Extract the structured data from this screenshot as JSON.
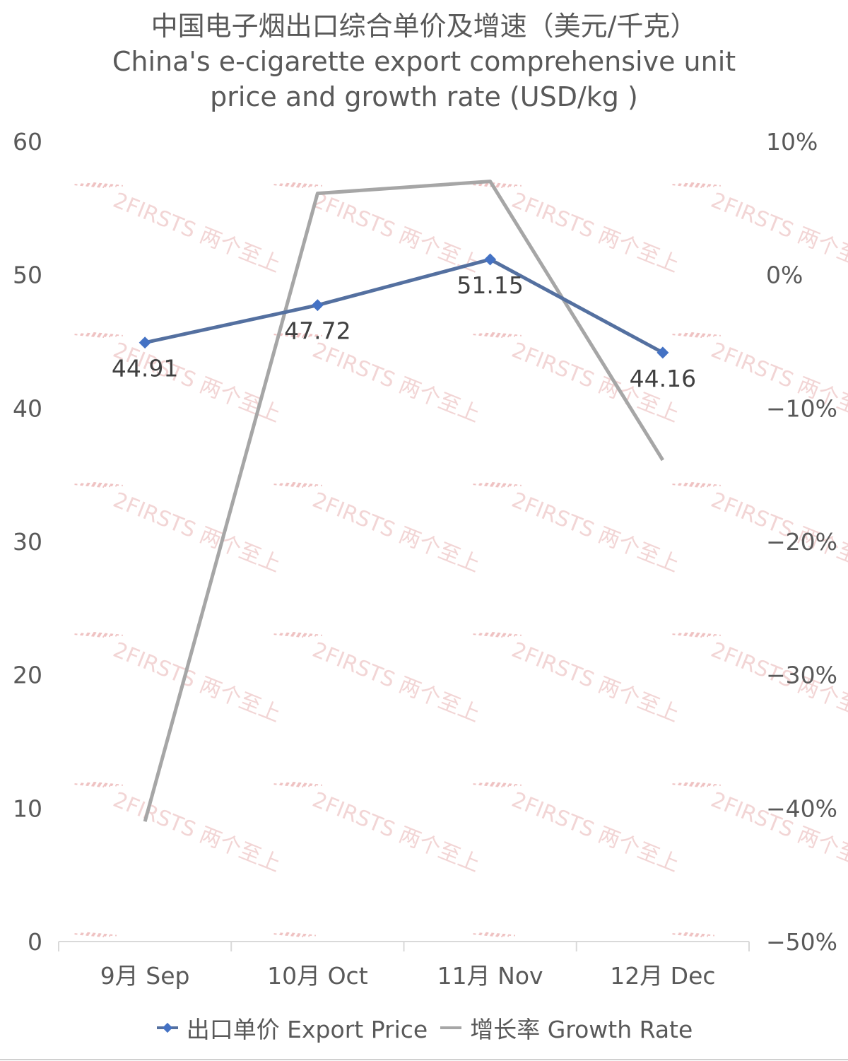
{
  "title_cn": "中国电子烟出口综合单价及增速（美元/千克）",
  "title_en_line1": "China's e-cigarette export comprehensive unit",
  "title_en_line2": "price and growth rate (USD/kg )",
  "watermark_text": "2FIRSTS 两个至上",
  "colors": {
    "price": "#4472C4",
    "price_line": "#5470a0",
    "growth": "#a6a6a6",
    "axis": "#d9d9d9",
    "text": "#595959"
  },
  "legend": {
    "price_label": "出口单价 Export Price",
    "growth_label": "增长率 Growth Rate"
  },
  "chart_data": {
    "type": "line",
    "categories": [
      "9月 Sep",
      "10月 Oct",
      "11月 Nov",
      "12月 Dec"
    ],
    "series": [
      {
        "name": "出口单价 Export Price",
        "axis": "left",
        "values": [
          44.91,
          47.72,
          51.15,
          44.16
        ],
        "labels": [
          "44.91",
          "47.72",
          "51.15",
          "44.16"
        ]
      },
      {
        "name": "增长率 Growth Rate",
        "axis": "right",
        "values": [
          -41.0,
          6.1,
          7.0,
          -13.9
        ]
      }
    ],
    "y_left": {
      "min": 0,
      "max": 60,
      "ticks": [
        "0",
        "10",
        "20",
        "30",
        "40",
        "50",
        "60"
      ]
    },
    "y_right": {
      "min": -50,
      "max": 10,
      "ticks": [
        "−50%",
        "−40%",
        "−30%",
        "−20%",
        "−10%",
        "0%",
        "10%"
      ]
    },
    "grid": false,
    "legend_position": "bottom"
  }
}
